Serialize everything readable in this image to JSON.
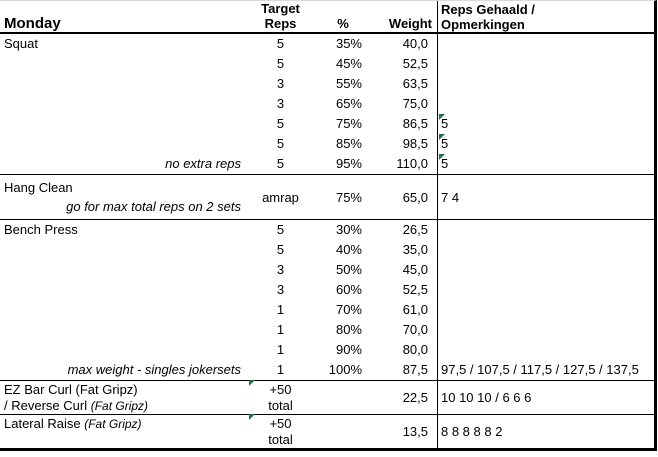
{
  "title": "Monday",
  "columns": {
    "target_line1": "Target",
    "target_line2": "Reps",
    "percent": "%",
    "weight": "Weight",
    "notes_line1": "Reps Gehaald /",
    "notes_line2": "Opmerkingen"
  },
  "colors": {
    "flag": "#1E7145",
    "border": "#000000",
    "top_gridline": "#D9D9D9"
  },
  "sections": [
    {
      "name": "Squat",
      "rows": [
        {
          "reps": "5",
          "pct": "35%",
          "weight": "40,0",
          "result": ""
        },
        {
          "reps": "5",
          "pct": "45%",
          "weight": "52,5",
          "result": ""
        },
        {
          "reps": "3",
          "pct": "55%",
          "weight": "63,5",
          "result": ""
        },
        {
          "reps": "3",
          "pct": "65%",
          "weight": "75,0",
          "result": ""
        },
        {
          "reps": "5",
          "pct": "75%",
          "weight": "86,5",
          "result": "5",
          "flag": true
        },
        {
          "reps": "5",
          "pct": "85%",
          "weight": "98,5",
          "result": "5",
          "flag": true
        },
        {
          "annotation": "no extra reps",
          "reps": "5",
          "pct": "95%",
          "weight": "110,0",
          "result": "5",
          "flag": true
        }
      ]
    },
    {
      "name": "Hang Clean",
      "annotation": "go for max total reps on 2 sets",
      "reps": "amrap",
      "pct": "75%",
      "weight": "65,0",
      "result": "7 4"
    },
    {
      "name": "Bench Press",
      "rows": [
        {
          "reps": "5",
          "pct": "30%",
          "weight": "26,5",
          "result": ""
        },
        {
          "reps": "5",
          "pct": "40%",
          "weight": "35,0",
          "result": ""
        },
        {
          "reps": "3",
          "pct": "50%",
          "weight": "45,0",
          "result": ""
        },
        {
          "reps": "3",
          "pct": "60%",
          "weight": "52,5",
          "result": ""
        },
        {
          "reps": "1",
          "pct": "70%",
          "weight": "61,0",
          "result": ""
        },
        {
          "reps": "1",
          "pct": "80%",
          "weight": "70,0",
          "result": ""
        },
        {
          "reps": "1",
          "pct": "90%",
          "weight": "80,0",
          "result": ""
        },
        {
          "annotation": "max weight - singles jokersets",
          "reps": "1",
          "pct": "100%",
          "weight": "87,5",
          "result": "97,5 / 107,5 / 117,5 / 127,5 / 137,5"
        }
      ]
    },
    {
      "name_line1": "EZ Bar Curl (Fat Gripz)",
      "name_line2": "/ Reverse Curl ",
      "name_line2_note": "(Fat Gripz)",
      "reps_line1": "+50",
      "reps_line2": "total",
      "weight": "22,5",
      "result": "10 10 10 / 6 6 6",
      "flag": true
    },
    {
      "name": "Lateral Raise ",
      "name_note": "(Fat Gripz)",
      "reps_line1": "+50",
      "reps_line2": "total",
      "weight": "13,5",
      "result": "8 8 8 8 8 2",
      "flag": true
    }
  ]
}
